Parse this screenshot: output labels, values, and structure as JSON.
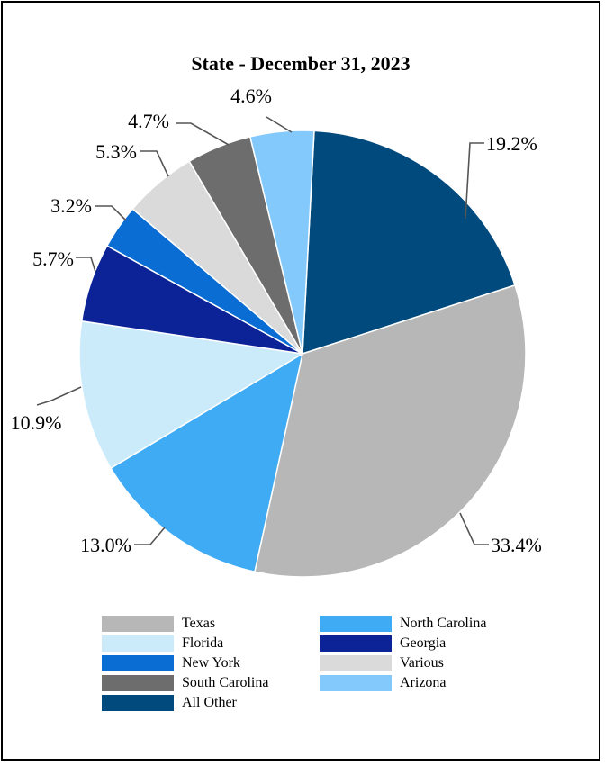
{
  "chart_data": {
    "type": "pie",
    "title": "State - December 31, 2023",
    "slices": [
      {
        "name": "All Other",
        "value": 19.2,
        "label": "19.2%",
        "color": "#014a7d"
      },
      {
        "name": "Texas",
        "value": 33.4,
        "label": "33.4%",
        "color": "#b7b7b7"
      },
      {
        "name": "North Carolina",
        "value": 13.0,
        "label": "13.0%",
        "color": "#3fabf5"
      },
      {
        "name": "Florida",
        "value": 10.9,
        "label": "10.9%",
        "color": "#cbebfb"
      },
      {
        "name": "Georgia",
        "value": 5.7,
        "label": "5.7%",
        "color": "#0b2397"
      },
      {
        "name": "New York",
        "value": 3.2,
        "label": "3.2%",
        "color": "#0a6dd3"
      },
      {
        "name": "Various",
        "value": 5.3,
        "label": "5.3%",
        "color": "#dadada"
      },
      {
        "name": "South Carolina",
        "value": 4.7,
        "label": "4.7%",
        "color": "#6d6d6d"
      },
      {
        "name": "Arizona",
        "value": 4.6,
        "label": "4.6%",
        "color": "#84c9fc"
      }
    ],
    "legend": [
      "Texas",
      "North Carolina",
      "Florida",
      "Georgia",
      "New York",
      "Various",
      "South Carolina",
      "Arizona",
      "All Other"
    ],
    "legend_position": "bottom"
  }
}
